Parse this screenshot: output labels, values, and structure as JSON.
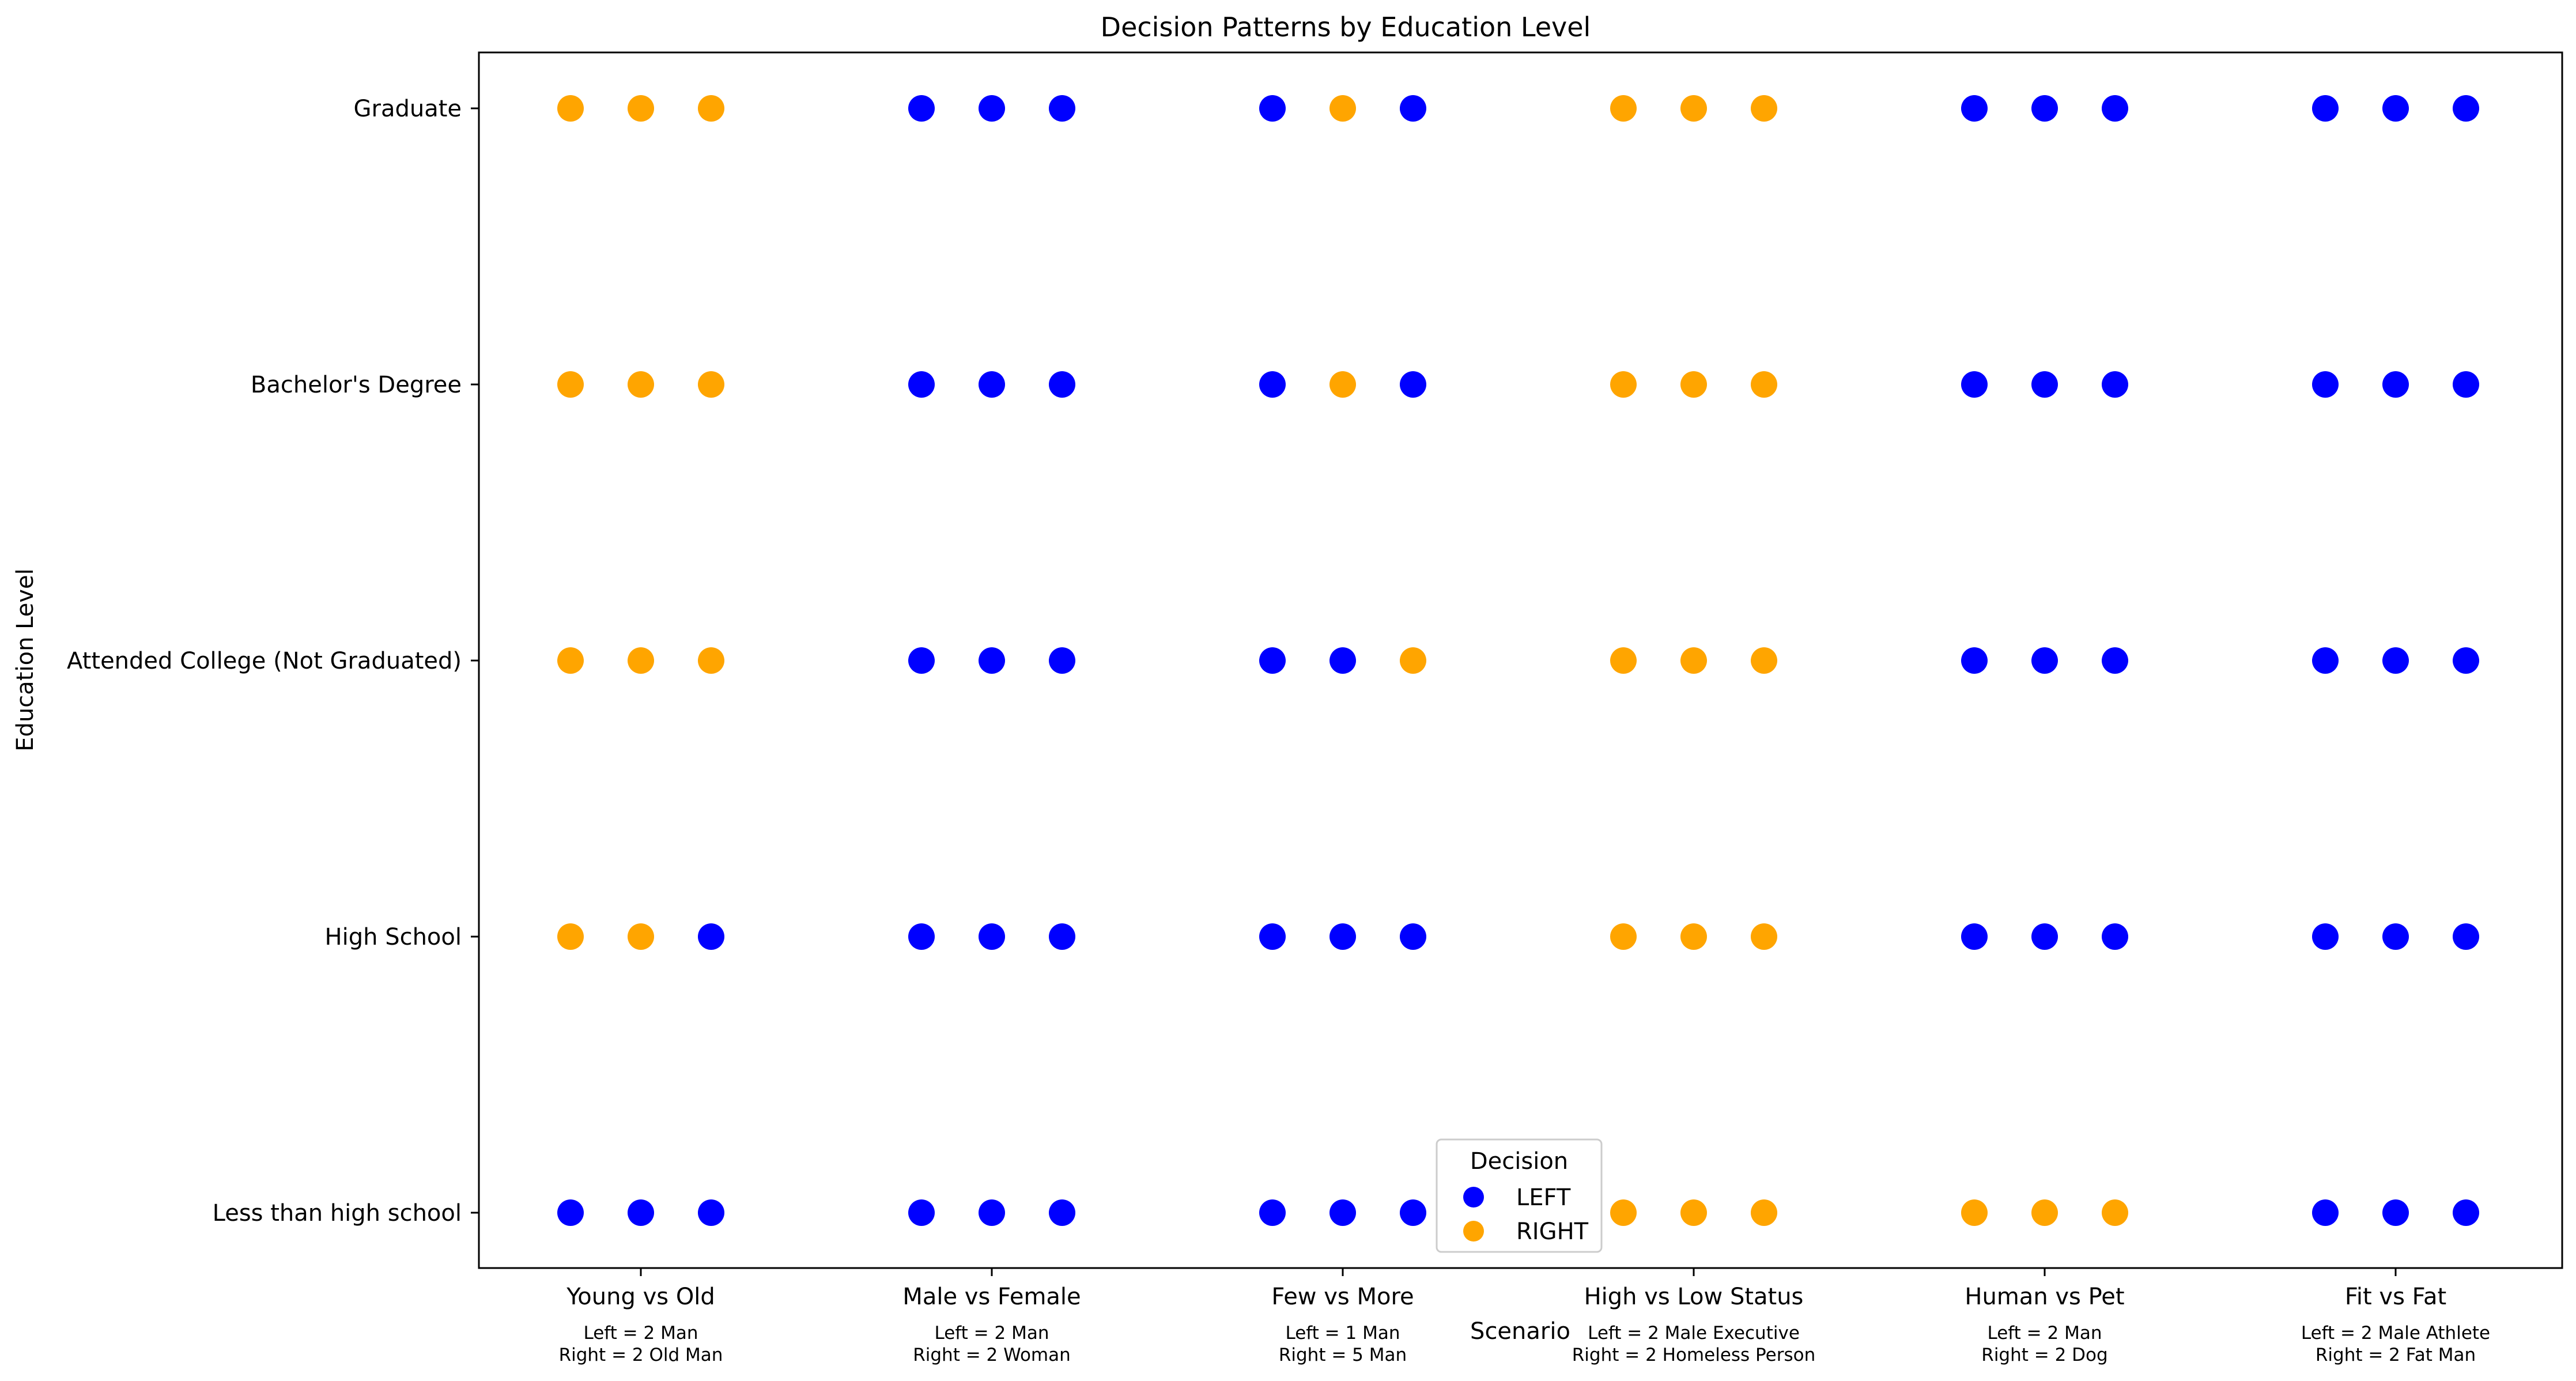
{
  "chart_data": {
    "type": "scatter",
    "title": "Decision Patterns by Education Level",
    "xlabel": "Scenario",
    "ylabel": "Education Level",
    "grid": false,
    "legend": {
      "title": "Decision",
      "placement": "bottom-center",
      "entries": [
        {
          "label": "LEFT",
          "color": "#0000ff"
        },
        {
          "label": "RIGHT",
          "color": "#ffa500"
        }
      ]
    },
    "colors": {
      "LEFT": "#0000ff",
      "RIGHT": "#ffa500"
    },
    "y_categories": [
      "Less than high school",
      "High School",
      "Attended College (Not Graduated)",
      "Bachelor's Degree",
      "Graduate"
    ],
    "scenarios": [
      {
        "name": "Young vs Old",
        "left_desc": "Left = 2 Man",
        "right_desc": "Right = 2 Old Man"
      },
      {
        "name": "Male vs Female",
        "left_desc": "Left = 2 Man",
        "right_desc": "Right = 2 Woman"
      },
      {
        "name": "Few vs More",
        "left_desc": "Left = 1 Man",
        "right_desc": "Right = 5 Man"
      },
      {
        "name": "High vs Low Status",
        "left_desc": "Left = 2 Male Executive",
        "right_desc": "Right = 2 Homeless Person"
      },
      {
        "name": "Human vs Pet",
        "left_desc": "Left = 2 Man",
        "right_desc": "Right = 2 Dog"
      },
      {
        "name": "Fit vs Fat",
        "left_desc": "Left = 2 Male Athlete",
        "right_desc": "Right = 2 Fat Man"
      }
    ],
    "decisions": {
      "Less than high school": [
        [
          "LEFT",
          "LEFT",
          "LEFT"
        ],
        [
          "LEFT",
          "LEFT",
          "LEFT"
        ],
        [
          "LEFT",
          "LEFT",
          "LEFT"
        ],
        [
          "RIGHT",
          "RIGHT",
          "RIGHT"
        ],
        [
          "RIGHT",
          "RIGHT",
          "RIGHT"
        ],
        [
          "LEFT",
          "LEFT",
          "LEFT"
        ]
      ],
      "High School": [
        [
          "RIGHT",
          "RIGHT",
          "LEFT"
        ],
        [
          "LEFT",
          "LEFT",
          "LEFT"
        ],
        [
          "LEFT",
          "LEFT",
          "LEFT"
        ],
        [
          "RIGHT",
          "RIGHT",
          "RIGHT"
        ],
        [
          "LEFT",
          "LEFT",
          "LEFT"
        ],
        [
          "LEFT",
          "LEFT",
          "LEFT"
        ]
      ],
      "Attended College (Not Graduated)": [
        [
          "RIGHT",
          "RIGHT",
          "RIGHT"
        ],
        [
          "LEFT",
          "LEFT",
          "LEFT"
        ],
        [
          "LEFT",
          "LEFT",
          "RIGHT"
        ],
        [
          "RIGHT",
          "RIGHT",
          "RIGHT"
        ],
        [
          "LEFT",
          "LEFT",
          "LEFT"
        ],
        [
          "LEFT",
          "LEFT",
          "LEFT"
        ]
      ],
      "Bachelor's Degree": [
        [
          "RIGHT",
          "RIGHT",
          "RIGHT"
        ],
        [
          "LEFT",
          "LEFT",
          "LEFT"
        ],
        [
          "LEFT",
          "RIGHT",
          "LEFT"
        ],
        [
          "RIGHT",
          "RIGHT",
          "RIGHT"
        ],
        [
          "LEFT",
          "LEFT",
          "LEFT"
        ],
        [
          "LEFT",
          "LEFT",
          "LEFT"
        ]
      ],
      "Graduate": [
        [
          "RIGHT",
          "RIGHT",
          "RIGHT"
        ],
        [
          "LEFT",
          "LEFT",
          "LEFT"
        ],
        [
          "LEFT",
          "RIGHT",
          "LEFT"
        ],
        [
          "RIGHT",
          "RIGHT",
          "RIGHT"
        ],
        [
          "LEFT",
          "LEFT",
          "LEFT"
        ],
        [
          "LEFT",
          "LEFT",
          "LEFT"
        ]
      ]
    }
  }
}
